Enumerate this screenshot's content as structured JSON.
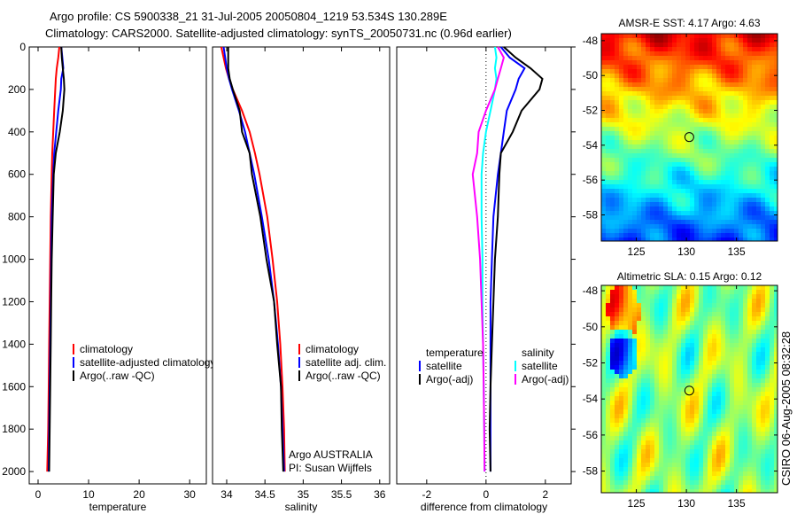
{
  "title_line1": "Argo profile: CS 5900338_21 31-Jul-2005 20050804_1219 53.534S 130.289E",
  "title_line2": "Climatology: CARS2000. Satellite-adjusted climatology: synTS_20050731.nc (0.96d earlier)",
  "footer": "CSIRO 06-Aug-2005 08:32:28",
  "colors": {
    "red": "#ff0000",
    "blue": "#0000ff",
    "black": "#000000",
    "cyan": "#00ffff",
    "magenta": "#ff00ff"
  },
  "chart_data": [
    {
      "type": "line",
      "name": "temperature-profile",
      "xlabel": "temperature",
      "ylabel": "",
      "xlim": [
        -1.75,
        33.3
      ],
      "ylim": [
        0,
        2058
      ],
      "y_reversed": true,
      "xticks": [
        0,
        10,
        20,
        30
      ],
      "yticks": [
        0,
        200,
        400,
        600,
        800,
        1000,
        1200,
        1400,
        1600,
        1800,
        2000
      ],
      "legend": [
        "climatology",
        "satellite-adjusted climatology",
        "Argo(..raw -QC)"
      ],
      "depth": [
        0,
        50,
        100,
        150,
        200,
        300,
        400,
        500,
        600,
        800,
        1000,
        1200,
        1400,
        1600,
        1800,
        2000
      ],
      "series": [
        {
          "name": "climatology",
          "color": "#ff0000",
          "values": [
            4.2,
            4.0,
            3.7,
            3.5,
            3.4,
            3.2,
            3.0,
            2.8,
            2.7,
            2.5,
            2.4,
            2.3,
            2.2,
            2.1,
            2.0,
            1.8
          ]
        },
        {
          "name": "satellite-adjusted climatology",
          "color": "#0000ff",
          "values": [
            4.6,
            4.8,
            5.0,
            4.6,
            4.5,
            4.0,
            3.6,
            3.2,
            3.0,
            2.7,
            2.6,
            2.5,
            2.4,
            2.3,
            2.2,
            2.1
          ]
        },
        {
          "name": "Argo(..raw -QC)",
          "color": "#000000",
          "values": [
            4.6,
            4.7,
            4.9,
            5.1,
            5.2,
            4.9,
            4.3,
            3.5,
            3.1,
            2.9,
            2.7,
            2.6,
            2.5,
            2.4,
            2.3,
            2.2
          ]
        }
      ]
    },
    {
      "type": "line",
      "name": "salinity-profile",
      "xlabel": "salinity",
      "xlim": [
        33.815,
        36.13
      ],
      "ylim": [
        0,
        2058
      ],
      "y_reversed": true,
      "xticks": [
        34,
        34.5,
        35,
        35.5,
        36
      ],
      "legend": [
        "climatology",
        "satellite adj. clim.",
        "Argo(..raw -QC)"
      ],
      "annotation": [
        "Argo AUSTRALIA",
        "PI: Susan Wijffels"
      ],
      "depth": [
        0,
        50,
        100,
        150,
        200,
        300,
        400,
        500,
        600,
        800,
        1000,
        1200,
        1400,
        1600,
        1800,
        2000
      ],
      "series": [
        {
          "name": "climatology",
          "color": "#ff0000",
          "values": [
            33.93,
            33.96,
            33.99,
            34.03,
            34.08,
            34.2,
            34.3,
            34.37,
            34.43,
            34.53,
            34.6,
            34.66,
            34.7,
            34.73,
            34.75,
            34.76
          ]
        },
        {
          "name": "satellite adj. clim.",
          "color": "#0000ff",
          "values": [
            33.96,
            33.98,
            34.0,
            34.03,
            34.07,
            34.16,
            34.24,
            34.3,
            34.36,
            34.46,
            34.55,
            34.62,
            34.67,
            34.71,
            34.73,
            34.75
          ]
        },
        {
          "name": "Argo(..raw -QC)",
          "color": "#000000",
          "values": [
            34.02,
            34.02,
            34.02,
            34.04,
            34.08,
            34.17,
            34.2,
            34.3,
            34.33,
            34.44,
            34.52,
            34.62,
            34.66,
            34.71,
            34.72,
            34.74
          ]
        }
      ]
    },
    {
      "type": "line",
      "name": "difference-profile",
      "xlabel": "difference from climatology",
      "xlim": [
        -3.01,
        2.87
      ],
      "ylim": [
        0,
        2058
      ],
      "y_reversed": true,
      "xticks": [
        -2,
        0,
        2
      ],
      "legend_groups": [
        {
          "title": "temperature",
          "items": [
            "satellite",
            "Argo(-adj)"
          ]
        },
        {
          "title": "salinity",
          "items": [
            "satellite",
            "Argo(-adj)"
          ]
        }
      ],
      "depth": [
        0,
        50,
        100,
        150,
        200,
        300,
        400,
        500,
        600,
        800,
        1000,
        1200,
        1400,
        1600,
        1800,
        2000
      ],
      "series": [
        {
          "name": "temperature satellite",
          "color": "#0000ff",
          "values": [
            0.5,
            0.8,
            1.3,
            1.1,
            1.0,
            0.7,
            0.6,
            0.5,
            0.4,
            0.25,
            0.2,
            0.15,
            0.15,
            0.15,
            0.15,
            0.15
          ]
        },
        {
          "name": "temperature Argo(-adj)",
          "color": "#000000",
          "values": [
            0.6,
            1.0,
            1.5,
            1.9,
            1.8,
            1.2,
            0.9,
            0.5,
            0.45,
            0.4,
            0.3,
            0.25,
            0.2,
            0.15,
            0.12,
            0.15
          ]
        },
        {
          "name": "salinity satellite",
          "color": "#00ffff",
          "values": [
            0.3,
            0.35,
            0.3,
            0.35,
            0.3,
            0.15,
            0.0,
            -0.1,
            -0.15,
            -0.15,
            -0.12,
            -0.12,
            -0.1,
            -0.08,
            -0.06,
            -0.05
          ]
        },
        {
          "name": "salinity Argo(-adj)",
          "color": "#ff00ff",
          "values": [
            0.4,
            0.6,
            0.5,
            0.4,
            0.3,
            0.0,
            -0.25,
            -0.3,
            -0.45,
            -0.3,
            -0.2,
            -0.15,
            -0.1,
            -0.08,
            -0.06,
            -0.05
          ]
        }
      ]
    },
    {
      "type": "heatmap",
      "name": "sst-map",
      "title": "AMSR-E SST: 4.17 Argo: 4.63",
      "xlim": [
        121.5,
        139.1
      ],
      "ylim": [
        -59.5,
        -47.6
      ],
      "xticks": [
        125,
        130,
        135
      ],
      "yticks": [
        -48,
        -50,
        -52,
        -54,
        -56,
        -58
      ],
      "colormap": "jet",
      "profile_location": {
        "lon": 130.289,
        "lat": -53.534
      }
    },
    {
      "type": "heatmap",
      "name": "sla-map",
      "title": "Altimetric SLA: 0.15 Argo: 0.12",
      "xlim": [
        121.5,
        139.1
      ],
      "ylim": [
        -59.2,
        -47.7
      ],
      "xticks": [
        125,
        130,
        135
      ],
      "yticks": [
        -48,
        -50,
        -52,
        -54,
        -56,
        -58
      ],
      "colormap": "jet",
      "profile_location": {
        "lon": 130.289,
        "lat": -53.534
      }
    }
  ]
}
